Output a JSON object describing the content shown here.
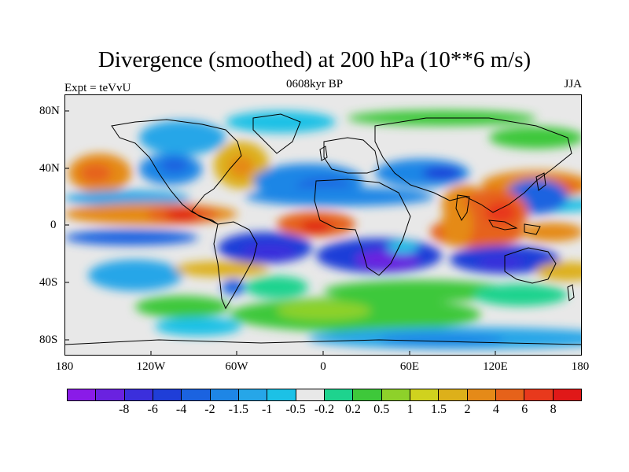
{
  "title": "Divergence (smoothed) at 200 hPa (10**6 m/s)",
  "subtitle_left": "Expt = teVvU",
  "subtitle_center": "0608kyr BP",
  "subtitle_right": "JJA",
  "lat_labels": [
    "80N",
    "40N",
    "0",
    "40S",
    "80S"
  ],
  "lon_labels": [
    "180",
    "120W",
    "60W",
    "0",
    "60E",
    "120E",
    "180"
  ],
  "colorbar": {
    "colors": [
      "#8a1be8",
      "#6a22e0",
      "#3b2fdc",
      "#1f3ed8",
      "#1b63e0",
      "#1e86e6",
      "#26a6e8",
      "#1cc1e6",
      "#e8e8e8",
      "#1ed38e",
      "#3ec83a",
      "#8ed12a",
      "#d0d21e",
      "#ddb01a",
      "#e58a18",
      "#e6621a",
      "#e8391c",
      "#e01818"
    ],
    "labels": [
      "-8",
      "-6",
      "-4",
      "-2",
      "-1.5",
      "-1",
      "-0.5",
      "-0.2",
      "0.2",
      "0.5",
      "1",
      "1.5",
      "2",
      "4",
      "6",
      "8"
    ]
  }
}
